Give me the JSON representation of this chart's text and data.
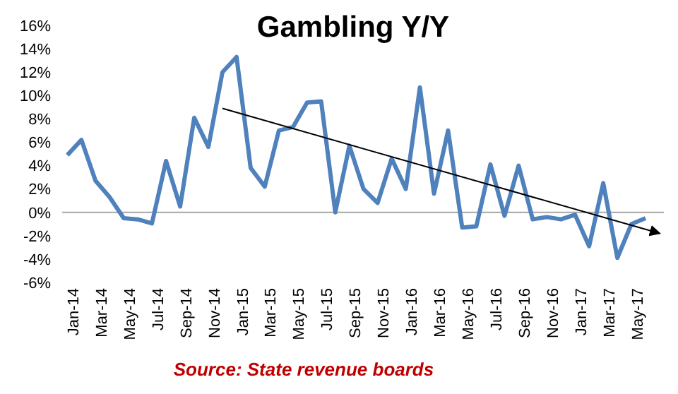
{
  "chart_data": {
    "type": "line",
    "title": "Gambling Y/Y",
    "annotations": [
      "Source: State revenue boards"
    ],
    "x": [
      "2014-01",
      "2014-02",
      "2014-03",
      "2014-04",
      "2014-05",
      "2014-06",
      "2014-07",
      "2014-08",
      "2014-09",
      "2014-10",
      "2014-11",
      "2014-12",
      "2015-01",
      "2015-02",
      "2015-03",
      "2015-04",
      "2015-05",
      "2015-06",
      "2015-07",
      "2015-08",
      "2015-09",
      "2015-10",
      "2015-11",
      "2015-12",
      "2016-01",
      "2016-02",
      "2016-03",
      "2016-04",
      "2016-05",
      "2016-06",
      "2016-07",
      "2016-08",
      "2016-09",
      "2016-10",
      "2016-11",
      "2016-12",
      "2017-01",
      "2017-02",
      "2017-03",
      "2017-04",
      "2017-05",
      "2017-06"
    ],
    "series": [
      {
        "color": "#4f81bd",
        "values": [
          4.9,
          6.2,
          2.7,
          1.3,
          -0.5,
          -0.6,
          -0.95,
          4.4,
          0.5,
          8.1,
          5.6,
          12.0,
          13.3,
          3.8,
          2.2,
          7.0,
          7.3,
          9.4,
          9.5,
          0.0,
          5.7,
          2.0,
          0.8,
          4.6,
          2.0,
          10.7,
          1.6,
          7.0,
          -1.3,
          -1.2,
          4.1,
          -0.3,
          4.0,
          -0.6,
          -0.4,
          -0.6,
          -0.2,
          -2.9,
          2.5,
          -3.9,
          -1.0,
          -0.5
        ]
      },
      {
        "type": "line",
        "color": "#000000",
        "x": [
          "2014-12",
          "2017-07"
        ],
        "values": [
          8.9,
          -1.8
        ]
      }
    ],
    "xlim": [
      "2013-12-20",
      "2017-07-10"
    ],
    "xticks": [
      {
        "value": "2014-01",
        "label": "Jan-14"
      },
      {
        "value": "2014-03",
        "label": "Mar-14"
      },
      {
        "value": "2014-05",
        "label": "May-14"
      },
      {
        "value": "2014-07",
        "label": "Jul-14"
      },
      {
        "value": "2014-09",
        "label": "Sep-14"
      },
      {
        "value": "2014-11",
        "label": "Nov-14"
      },
      {
        "value": "2015-01",
        "label": "Jan-15"
      },
      {
        "value": "2015-03",
        "label": "Mar-15"
      },
      {
        "value": "2015-05",
        "label": "May-15"
      },
      {
        "value": "2015-07",
        "label": "Jul-15"
      },
      {
        "value": "2015-09",
        "label": "Sep-15"
      },
      {
        "value": "2015-11",
        "label": "Nov-15"
      },
      {
        "value": "2016-01",
        "label": "Jan-16"
      },
      {
        "value": "2016-03",
        "label": "Mar-16"
      },
      {
        "value": "2016-05",
        "label": "May-16"
      },
      {
        "value": "2016-07",
        "label": "Jul-16"
      },
      {
        "value": "2016-09",
        "label": "Sep-16"
      },
      {
        "value": "2016-11",
        "label": "Nov-16"
      },
      {
        "value": "2017-01",
        "label": "Jan-17"
      },
      {
        "value": "2017-03",
        "label": "Mar-17"
      },
      {
        "value": "2017-05",
        "label": "May-17"
      }
    ],
    "ylim": [
      -6,
      16
    ],
    "yticks": [
      {
        "value": -6,
        "label": "-6%"
      },
      {
        "value": -4,
        "label": "-4%"
      },
      {
        "value": -2,
        "label": "-2%"
      },
      {
        "value": 0,
        "label": "0%"
      },
      {
        "value": 2,
        "label": "2%"
      },
      {
        "value": 4,
        "label": "4%"
      },
      {
        "value": 6,
        "label": "6%"
      },
      {
        "value": 8,
        "label": "8%"
      },
      {
        "value": 10,
        "label": "10%"
      },
      {
        "value": 12,
        "label": "12%"
      },
      {
        "value": 14,
        "label": "14%"
      },
      {
        "value": 16,
        "label": "16%"
      }
    ],
    "ref_lines": [
      {
        "axis": "y",
        "value": 0,
        "color": "#a6a6a6"
      }
    ],
    "grid": false,
    "legend": false,
    "marker": "none"
  }
}
